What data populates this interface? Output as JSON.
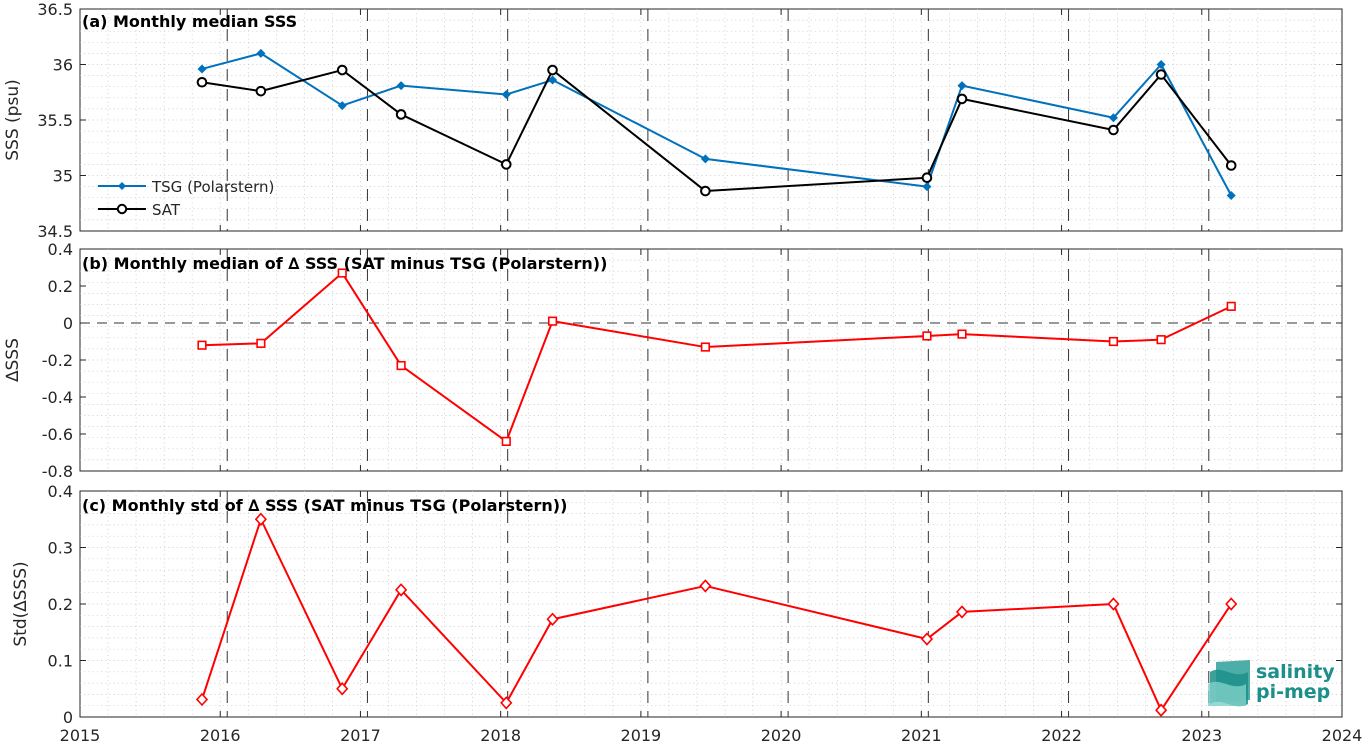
{
  "colors": {
    "tsg": "#0072BD",
    "sat": "#000000",
    "diff": "#FF0000",
    "logo": "#1c8f8a"
  },
  "logo": {
    "line1": "salinity",
    "line2": "pi-mep"
  },
  "chart_data": [
    {
      "type": "line",
      "title": "(a) Monthly median SSS",
      "ylabel": "SSS (psu)",
      "xlim": [
        2015,
        2024
      ],
      "ylim": [
        34.5,
        36.5
      ],
      "yticks": [
        "34.5",
        "35",
        "35.5",
        "36",
        "36.5"
      ],
      "xtick_labels": [
        "2015",
        "2016",
        "2017",
        "2018",
        "2019",
        "2020",
        "2021",
        "2022",
        "2023",
        "2024"
      ],
      "grid": true,
      "legend_position": "lower-left",
      "x": [
        2015.87,
        2016.29,
        2016.87,
        2017.29,
        2018.04,
        2018.37,
        2019.46,
        2021.04,
        2021.29,
        2022.37,
        2022.71,
        2023.21
      ],
      "series": [
        {
          "name": "TSG (Polarstern)",
          "marker": "diamond",
          "values": [
            35.96,
            36.1,
            35.63,
            35.81,
            35.73,
            35.86,
            35.15,
            34.9,
            35.81,
            35.52,
            36.0,
            34.82
          ]
        },
        {
          "name": "SAT",
          "marker": "circle",
          "values": [
            35.84,
            35.76,
            35.95,
            35.55,
            35.1,
            35.95,
            34.86,
            34.98,
            35.69,
            35.41,
            35.91,
            35.09
          ]
        }
      ]
    },
    {
      "type": "line",
      "title": "(b) Monthly median of ∆ SSS (SAT minus TSG (Polarstern))",
      "ylabel": "∆SSS",
      "xlim": [
        2015,
        2024
      ],
      "ylim": [
        -0.8,
        0.4
      ],
      "yticks": [
        "-0.8",
        "-0.6",
        "-0.4",
        "-0.2",
        "0",
        "0.2",
        "0.4"
      ],
      "grid": true,
      "zero_line": true,
      "x": [
        2015.87,
        2016.29,
        2016.87,
        2017.29,
        2018.04,
        2018.37,
        2019.46,
        2021.04,
        2021.29,
        2022.37,
        2022.71,
        2023.21
      ],
      "series": [
        {
          "marker": "square",
          "values": [
            -0.12,
            -0.11,
            0.27,
            -0.23,
            -0.64,
            0.01,
            -0.13,
            -0.07,
            -0.06,
            -0.1,
            -0.09,
            0.09
          ]
        }
      ]
    },
    {
      "type": "line",
      "title": "(c) Monthly std of ∆ SSS (SAT minus TSG (Polarstern))",
      "ylabel": "Std(∆SSS)",
      "xlim": [
        2015,
        2024
      ],
      "ylim": [
        0,
        0.4
      ],
      "yticks": [
        "0",
        "0.1",
        "0.2",
        "0.3",
        "0.4"
      ],
      "grid": true,
      "x": [
        2015.87,
        2016.29,
        2016.87,
        2017.29,
        2018.04,
        2018.37,
        2019.46,
        2021.04,
        2021.29,
        2022.37,
        2022.71,
        2023.21
      ],
      "series": [
        {
          "marker": "diamond",
          "values": [
            0.031,
            0.35,
            0.05,
            0.225,
            0.025,
            0.173,
            0.232,
            0.138,
            0.186,
            0.2,
            0.012,
            0.2
          ]
        }
      ]
    }
  ]
}
